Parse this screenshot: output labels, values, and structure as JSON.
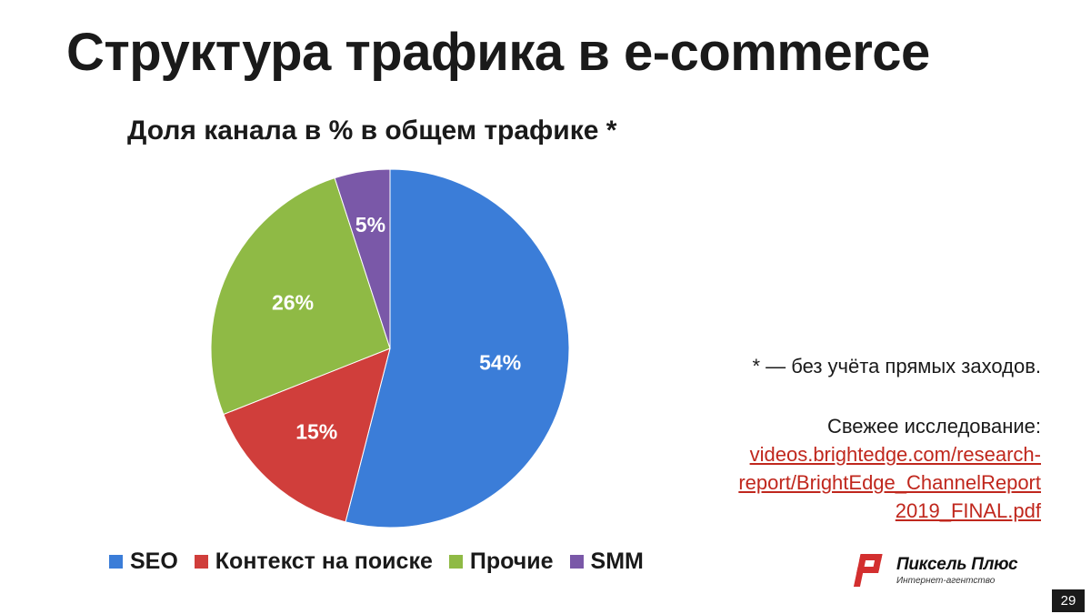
{
  "slide": {
    "title": "Структура трафика в e-commerce",
    "page_number": "29"
  },
  "chart_data": {
    "type": "pie",
    "title": "Доля канала в % в общем трафике *",
    "categories": [
      "SEO",
      "Контекст на поиске",
      "Прочие",
      "SMM"
    ],
    "values": [
      54,
      15,
      26,
      5
    ],
    "labels": [
      "54%",
      "15%",
      "26%",
      "5%"
    ],
    "colors": [
      "#3b7dd8",
      "#d03e3b",
      "#8fba45",
      "#7a58a8"
    ],
    "start_angle_deg": 0,
    "direction": "clockwise",
    "legend_position": "bottom"
  },
  "notes": {
    "footnote": "* — без учёта прямых заходов.",
    "study_label": "Свежее исследование:",
    "study_link_lines": [
      "videos.brightedge.com/research-",
      "report/BrightEdge_ChannelReport",
      "2019_FINAL.pdf"
    ]
  },
  "logo": {
    "name": "Пиксель Плюс",
    "subtitle": "Интернет-агентство",
    "icon": "pixel-plus-logo-icon",
    "color": "#d32f2f"
  }
}
